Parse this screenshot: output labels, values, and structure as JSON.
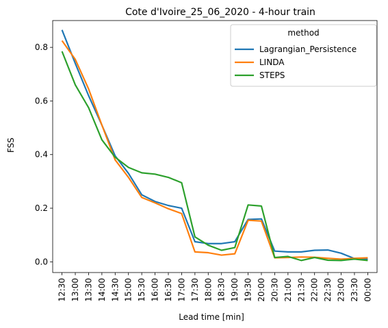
{
  "chart_data": {
    "type": "line",
    "title": "Cote d'Ivoire_25_06_2020 - 4-hour train",
    "xlabel": "Lead time [min]",
    "ylabel": "FSS",
    "ylim": [
      -0.04,
      0.9
    ],
    "yticks": [
      "0.0",
      "0.2",
      "0.4",
      "0.6",
      "0.8"
    ],
    "grid": false,
    "legend": {
      "title": "method",
      "placement": "top-right"
    },
    "categories": [
      "12:30",
      "13:00",
      "13:30",
      "14:00",
      "14:30",
      "15:00",
      "15:30",
      "16:00",
      "16:30",
      "17:00",
      "17:30",
      "18:00",
      "18:30",
      "19:00",
      "19:30",
      "20:00",
      "20:30",
      "21:00",
      "21:30",
      "22:00",
      "22:30",
      "23:00",
      "23:30",
      "00:00"
    ],
    "series": [
      {
        "name": "Lagrangian_Persistence",
        "color": "#1f77b4",
        "values": [
          0.865,
          0.74,
          0.62,
          0.51,
          0.395,
          0.33,
          0.25,
          0.225,
          0.21,
          0.2,
          0.075,
          0.068,
          0.068,
          0.075,
          0.158,
          0.16,
          0.04,
          0.037,
          0.037,
          0.043,
          0.044,
          0.032,
          0.012,
          0.01
        ]
      },
      {
        "name": "LINDA",
        "color": "#ff7f0e",
        "values": [
          0.825,
          0.755,
          0.645,
          0.51,
          0.38,
          0.315,
          0.24,
          0.22,
          0.198,
          0.18,
          0.037,
          0.034,
          0.025,
          0.03,
          0.155,
          0.152,
          0.015,
          0.016,
          0.018,
          0.017,
          0.013,
          0.01,
          0.013,
          0.015
        ]
      },
      {
        "name": "STEPS",
        "color": "#2ca02c",
        "values": [
          0.785,
          0.66,
          0.575,
          0.455,
          0.39,
          0.352,
          0.332,
          0.327,
          0.315,
          0.295,
          0.093,
          0.062,
          0.043,
          0.053,
          0.212,
          0.208,
          0.016,
          0.02,
          0.005,
          0.016,
          0.006,
          0.005,
          0.01,
          0.005
        ]
      }
    ]
  }
}
